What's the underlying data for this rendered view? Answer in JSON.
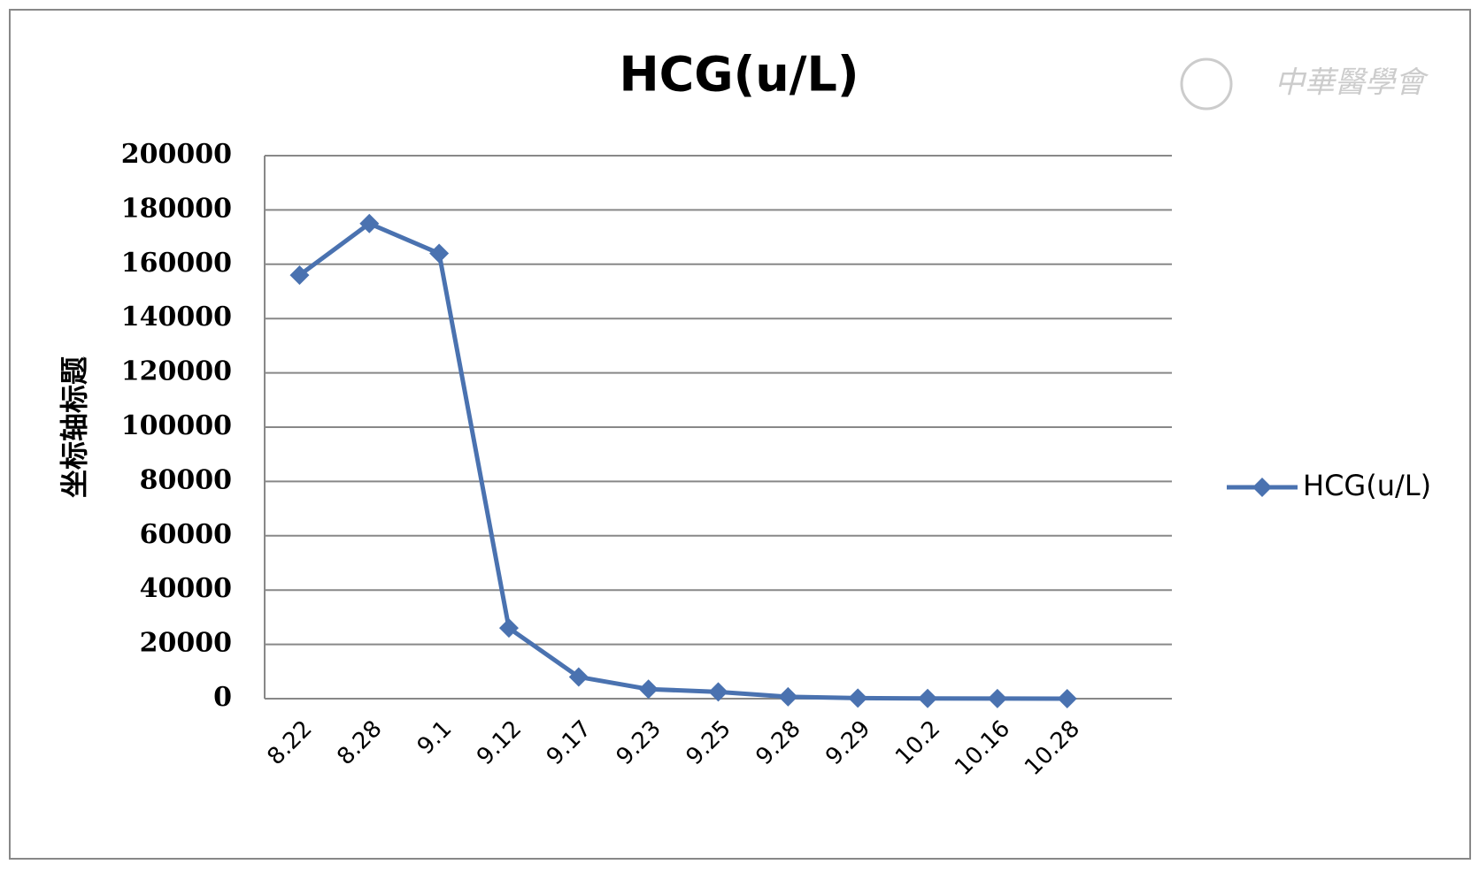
{
  "chart_data": {
    "type": "line",
    "title": "HCG(u/L)",
    "y_label": "坐标轴标题",
    "watermark": "中華醫學會",
    "categories": [
      "8.22",
      "8.28",
      "9.1",
      "9.12",
      "9.17",
      "9.23",
      "9.25",
      "9.28",
      "9.29",
      "10.2",
      "10.16",
      "10.28"
    ],
    "series": [
      {
        "name": "HCG(u/L)",
        "color": "#4a72b0",
        "values": [
          156000,
          175000,
          164000,
          26000,
          8000,
          3500,
          2500,
          700,
          200,
          100,
          50,
          20
        ]
      }
    ],
    "ylim": [
      0,
      200000
    ],
    "yticks": [
      0,
      20000,
      40000,
      60000,
      80000,
      100000,
      120000,
      140000,
      160000,
      180000,
      200000
    ],
    "grid": true,
    "legend": "right"
  }
}
